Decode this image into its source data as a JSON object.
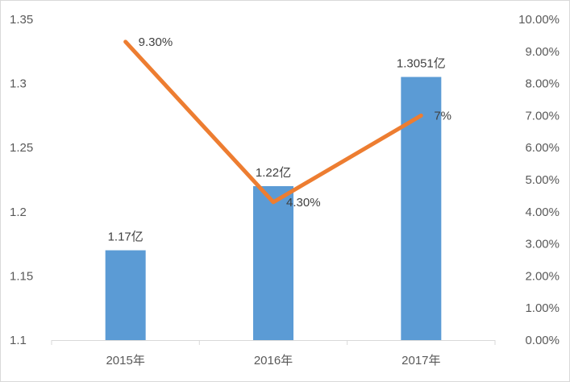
{
  "chart_data": {
    "type": "bar",
    "categories": [
      "2015年",
      "2016年",
      "2017年"
    ],
    "series": [
      {
        "type": "bar",
        "axis": "left",
        "values": [
          1.17,
          1.22,
          1.3051
        ],
        "labels": [
          "1.17亿",
          "1.22亿",
          "1.3051亿"
        ],
        "color": "#5B9BD5"
      },
      {
        "type": "line",
        "axis": "right",
        "values": [
          9.3,
          4.3,
          7.0
        ],
        "labels": [
          "9.30%",
          "4.30%",
          "7%"
        ],
        "color": "#ED7D31"
      }
    ],
    "y_left": {
      "min": 1.1,
      "max": 1.35,
      "step": 0.05,
      "tick_labels": [
        "1.1",
        "1.15",
        "1.2",
        "1.25",
        "1.3",
        "1.35"
      ]
    },
    "y_right": {
      "min": 0,
      "max": 10,
      "step": 1,
      "tick_labels": [
        "0.00%",
        "1.00%",
        "2.00%",
        "3.00%",
        "4.00%",
        "5.00%",
        "6.00%",
        "7.00%",
        "8.00%",
        "9.00%",
        "10.00%"
      ]
    },
    "grid": false,
    "legend": "none",
    "title": "",
    "xlabel": "",
    "ylabel": ""
  }
}
